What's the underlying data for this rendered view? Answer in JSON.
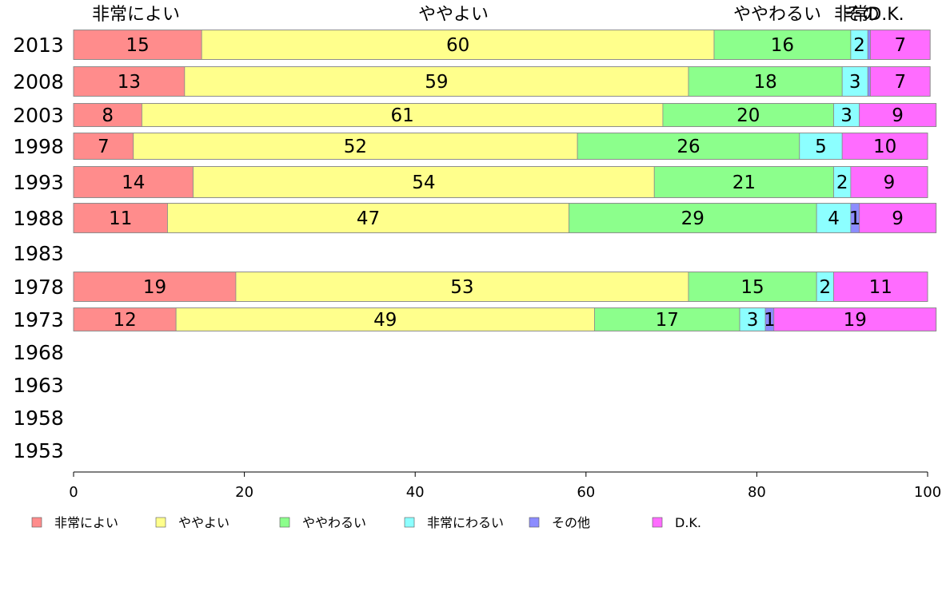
{
  "chart_data": {
    "type": "bar",
    "orientation": "horizontal",
    "stacked": true,
    "title": "",
    "xlabel": "",
    "ylabel": "",
    "xlim": [
      0,
      100
    ],
    "x_ticks": [
      "0",
      "20",
      "40",
      "60",
      "80",
      "100"
    ],
    "grid": false,
    "legend_position": "bottom",
    "categories": [
      "2013",
      "2008",
      "2003",
      "1998",
      "1993",
      "1988",
      "1983",
      "1978",
      "1973",
      "1968",
      "1963",
      "1958",
      "1953"
    ],
    "series": [
      {
        "name": "非常によい",
        "color": "#ff8c8c",
        "values": [
          15,
          13,
          8,
          7,
          14,
          11,
          null,
          19,
          12,
          null,
          null,
          null,
          null
        ]
      },
      {
        "name": "ややよい",
        "color": "#ffff8c",
        "values": [
          60,
          59,
          61,
          52,
          54,
          47,
          null,
          53,
          49,
          null,
          null,
          null,
          null
        ]
      },
      {
        "name": "ややわるい",
        "color": "#8cff8c",
        "values": [
          16,
          18,
          20,
          26,
          21,
          29,
          null,
          15,
          17,
          null,
          null,
          null,
          null
        ]
      },
      {
        "name": "非常にわるい",
        "color": "#8cffff",
        "values": [
          2,
          3,
          3,
          5,
          2,
          4,
          null,
          2,
          3,
          null,
          null,
          null,
          null
        ]
      },
      {
        "name": "その他",
        "color": "#8c8cff",
        "values": [
          0.3,
          0.3,
          0,
          0,
          0,
          1,
          null,
          0,
          1,
          null,
          null,
          null,
          null
        ]
      },
      {
        "name": "D.K.",
        "color": "#ff6cff",
        "values": [
          7,
          7,
          9,
          10,
          9,
          9,
          null,
          11,
          19,
          null,
          null,
          null,
          null
        ]
      }
    ],
    "top_labels": [
      "非常によい",
      "ややよい",
      "ややわるい",
      "非常",
      "その",
      "D.K."
    ]
  }
}
